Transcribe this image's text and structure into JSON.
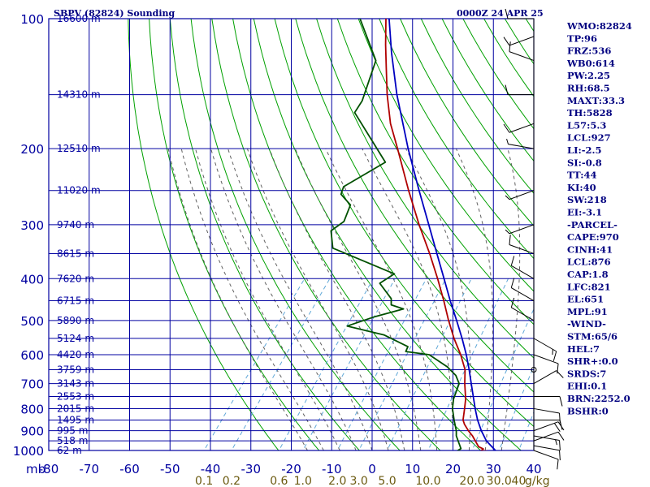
{
  "header": {
    "title": "SBPV (82824) Sounding",
    "time": "0000Z 24 APR 25"
  },
  "axis_units": {
    "pressure_unit": "mb",
    "mixing_ratio_unit": "g/kg"
  },
  "colors": {
    "grid": "#0000a0",
    "dry_adiabat": "#00a000",
    "moist_adiabat": "#606060",
    "mixing_ratio": "#60a8d8",
    "temperature": "#b00000",
    "dewpoint": "#005000",
    "parcel": "#0000c0",
    "text": "#000080"
  },
  "chart_data": {
    "type": "line",
    "diagram": "skew-T log-P",
    "pressure_ticks": [
      "100",
      "200",
      "300",
      "400",
      "500",
      "600",
      "700",
      "800",
      "900",
      "1000"
    ],
    "temperature_ticks": [
      "-80",
      "-70",
      "-60",
      "-50",
      "-40",
      "-30",
      "-20",
      "-10",
      "0",
      "10",
      "20",
      "30",
      "40"
    ],
    "xlim": [
      -80,
      40
    ],
    "ylim": [
      1000,
      100
    ],
    "y_scale": "log",
    "height_labels": [
      {
        "p": 100,
        "label": "16600 m"
      },
      {
        "p": 150,
        "label": "14310 m"
      },
      {
        "p": 200,
        "label": "12510 m"
      },
      {
        "p": 250,
        "label": "11020 m"
      },
      {
        "p": 300,
        "label": "9740 m"
      },
      {
        "p": 350,
        "label": "8615 m"
      },
      {
        "p": 400,
        "label": "7620 m"
      },
      {
        "p": 450,
        "label": "6715 m"
      },
      {
        "p": 500,
        "label": "5890 m"
      },
      {
        "p": 550,
        "label": "5124 m"
      },
      {
        "p": 600,
        "label": "4420 m"
      },
      {
        "p": 650,
        "label": "3759 m"
      },
      {
        "p": 700,
        "label": "3143 m"
      },
      {
        "p": 750,
        "label": "2553 m"
      },
      {
        "p": 800,
        "label": "2015 m"
      },
      {
        "p": 850,
        "label": "1495 m"
      },
      {
        "p": 900,
        "label": "995 m"
      },
      {
        "p": 950,
        "label": "518 m"
      },
      {
        "p": 1000,
        "label": "62 m"
      }
    ],
    "mixing_ratio_labels": [
      "0.1",
      "0.2",
      "0.6",
      "1.0",
      "2.0",
      "3.0",
      "5.0",
      "10.0",
      "20.0",
      "30.0",
      "40"
    ],
    "mixing_ratio_values": [
      0.1,
      0.2,
      0.6,
      1.0,
      2.0,
      3.0,
      5.0,
      10.0,
      20.0,
      30.0,
      40.0
    ],
    "dry_adiabats_K": [
      250,
      260,
      270,
      280,
      290,
      300,
      310,
      320,
      330,
      340,
      350,
      360,
      370,
      380,
      390,
      400,
      410,
      420,
      430,
      440,
      450,
      460,
      470,
      480,
      490,
      500,
      510,
      520,
      530,
      540,
      560
    ],
    "moist_adiabats_C": [
      -16,
      -12,
      -8,
      -4,
      0,
      4,
      8,
      12,
      16,
      20,
      24,
      28,
      32
    ],
    "series": [
      {
        "id": "temperature",
        "values": [
          {
            "p": 1006,
            "t": 30.0
          },
          {
            "p": 1000,
            "t": 27.0
          },
          {
            "p": 992,
            "t": 27.2
          },
          {
            "p": 980,
            "t": 25.6
          },
          {
            "p": 925,
            "t": 22.0
          },
          {
            "p": 900,
            "t": 20.0
          },
          {
            "p": 870,
            "t": 17.8
          },
          {
            "p": 850,
            "t": 16.6
          },
          {
            "p": 800,
            "t": 14.8
          },
          {
            "p": 760,
            "t": 13.2
          },
          {
            "p": 700,
            "t": 10.0
          },
          {
            "p": 650,
            "t": 7.4
          },
          {
            "p": 600,
            "t": 3.4
          },
          {
            "p": 550,
            "t": -1.4
          },
          {
            "p": 500,
            "t": -6.2
          },
          {
            "p": 450,
            "t": -11.2
          },
          {
            "p": 400,
            "t": -17.0
          },
          {
            "p": 350,
            "t": -23.8
          },
          {
            "p": 300,
            "t": -32.0
          },
          {
            "p": 250,
            "t": -41.2
          },
          {
            "p": 200,
            "t": -52.0
          },
          {
            "p": 175,
            "t": -58.6
          },
          {
            "p": 150,
            "t": -65.0
          },
          {
            "p": 130,
            "t": -70.4
          },
          {
            "p": 115,
            "t": -75.0
          },
          {
            "p": 100,
            "t": -80.0
          }
        ]
      },
      {
        "id": "dewpoint",
        "values": [
          {
            "p": 1006,
            "t": 23.0
          },
          {
            "p": 1000,
            "t": 21.2
          },
          {
            "p": 990,
            "t": 21.6
          },
          {
            "p": 925,
            "t": 18.0
          },
          {
            "p": 900,
            "t": 17.0
          },
          {
            "p": 850,
            "t": 14.4
          },
          {
            "p": 800,
            "t": 11.8
          },
          {
            "p": 760,
            "t": 10.2
          },
          {
            "p": 700,
            "t": 8.6
          },
          {
            "p": 670,
            "t": 6.2
          },
          {
            "p": 640,
            "t": 2.4
          },
          {
            "p": 600,
            "t": -4.4
          },
          {
            "p": 590,
            "t": -10.8
          },
          {
            "p": 575,
            "t": -11.2
          },
          {
            "p": 540,
            "t": -19.4
          },
          {
            "p": 515,
            "t": -30.2
          },
          {
            "p": 490,
            "t": -25.2
          },
          {
            "p": 470,
            "t": -19.6
          },
          {
            "p": 460,
            "t": -23.4
          },
          {
            "p": 445,
            "t": -24.6
          },
          {
            "p": 410,
            "t": -30.4
          },
          {
            "p": 390,
            "t": -28.6
          },
          {
            "p": 340,
            "t": -48.8
          },
          {
            "p": 310,
            "t": -52.6
          },
          {
            "p": 295,
            "t": -51.2
          },
          {
            "p": 270,
            "t": -52.8
          },
          {
            "p": 255,
            "t": -57.2
          },
          {
            "p": 245,
            "t": -58.0
          },
          {
            "p": 215,
            "t": -52.4
          },
          {
            "p": 165,
            "t": -69.6
          },
          {
            "p": 155,
            "t": -70.0
          },
          {
            "p": 125,
            "t": -74.4
          },
          {
            "p": 100,
            "t": -86.4
          }
        ]
      },
      {
        "id": "parcel",
        "values": [
          {
            "p": 1006,
            "t": 31.0
          },
          {
            "p": 950,
            "t": 26.4
          },
          {
            "p": 900,
            "t": 23.2
          },
          {
            "p": 850,
            "t": 20.2
          },
          {
            "p": 800,
            "t": 17.4
          },
          {
            "p": 700,
            "t": 11.6
          },
          {
            "p": 650,
            "t": 8.4
          },
          {
            "p": 600,
            "t": 4.8
          },
          {
            "p": 550,
            "t": 0.6
          },
          {
            "p": 500,
            "t": -4.2
          },
          {
            "p": 450,
            "t": -9.6
          },
          {
            "p": 400,
            "t": -15.4
          },
          {
            "p": 350,
            "t": -22.0
          },
          {
            "p": 300,
            "t": -29.6
          },
          {
            "p": 250,
            "t": -38.6
          },
          {
            "p": 200,
            "t": -49.4
          },
          {
            "p": 150,
            "t": -62.6
          },
          {
            "p": 120,
            "t": -72.0
          },
          {
            "p": 100,
            "t": -79.2
          }
        ]
      }
    ],
    "wind_barbs": [
      {
        "p": 1000,
        "dir": 110,
        "spd": 10
      },
      {
        "p": 975,
        "dir": 100,
        "spd": 10
      },
      {
        "p": 950,
        "dir": 70,
        "spd": 10
      },
      {
        "p": 925,
        "dir": 100,
        "spd": 15
      },
      {
        "p": 900,
        "dir": 70,
        "spd": 20
      },
      {
        "p": 850,
        "dir": 90,
        "spd": 10
      },
      {
        "p": 800,
        "dir": 100,
        "spd": 10
      },
      {
        "p": 750,
        "dir": 90,
        "spd": 10
      },
      {
        "p": 700,
        "dir": 60,
        "spd": 10
      },
      {
        "p": 650,
        "dir": 0,
        "spd": 0
      },
      {
        "p": 600,
        "dir": 110,
        "spd": 10
      },
      {
        "p": 550,
        "dir": 120,
        "spd": 15
      },
      {
        "p": 500,
        "dir": 300,
        "spd": 10
      },
      {
        "p": 450,
        "dir": 300,
        "spd": 10
      },
      {
        "p": 400,
        "dir": 300,
        "spd": 10
      },
      {
        "p": 350,
        "dir": 290,
        "spd": 10
      },
      {
        "p": 300,
        "dir": 250,
        "spd": 5
      },
      {
        "p": 250,
        "dir": 250,
        "spd": 5
      },
      {
        "p": 200,
        "dir": 280,
        "spd": 5
      },
      {
        "p": 175,
        "dir": 250,
        "spd": 10
      },
      {
        "p": 150,
        "dir": 270,
        "spd": 10
      },
      {
        "p": 125,
        "dir": 290,
        "spd": 10
      },
      {
        "p": 110,
        "dir": 250,
        "spd": 10
      },
      {
        "p": 100,
        "dir": 270,
        "spd": 10
      }
    ]
  },
  "indices": [
    "WMO:82824",
    "TP:96",
    "FRZ:536",
    "WB0:614",
    "PW:2.25",
    "RH:68.5",
    "MAXT:33.3",
    "TH:5828",
    "L57:5.3",
    "LCL:927",
    "LI:-2.5",
    "SI:-0.8",
    "TT:44",
    "KI:40",
    "SW:218",
    "EI:-3.1",
    "-PARCEL-",
    "CAPE:970",
    "CINH:41",
    "LCL:876",
    "CAP:1.8",
    "LFC:821",
    "EL:651",
    "MPL:91",
    "-WIND-",
    "STM:65/6",
    "HEL:7",
    "SHR+:0.0",
    "SRDS:7",
    "EHI:0.1",
    "BRN:2252.0",
    "BSHR:0"
  ]
}
